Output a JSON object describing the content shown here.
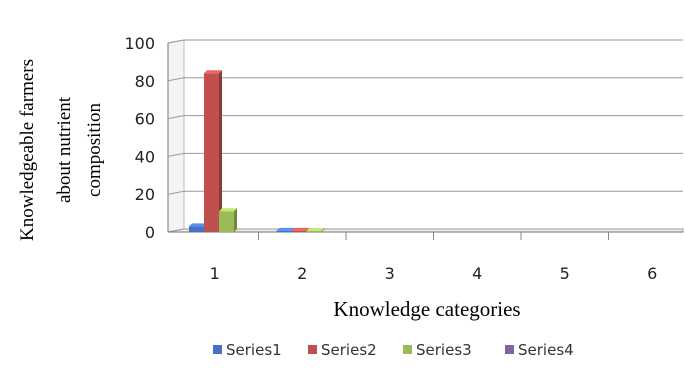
{
  "chart_data": {
    "type": "bar",
    "categories": [
      "1",
      "2",
      "3",
      "4",
      "5",
      "6"
    ],
    "series": [
      {
        "name": "Series1",
        "color": "#4472C4",
        "values": [
          3,
          0.6,
          0,
          0,
          0,
          0
        ]
      },
      {
        "name": "Series2",
        "color": "#C0504D",
        "values": [
          84,
          0.6,
          0,
          0,
          0,
          0
        ]
      },
      {
        "name": "Series3",
        "color": "#9BBB59",
        "values": [
          11,
          0.6,
          0,
          0,
          0,
          0
        ]
      },
      {
        "name": "Series4",
        "color": "#8064A2",
        "values": [
          0,
          0,
          0,
          0,
          0,
          0
        ]
      }
    ],
    "ylabel_lines": [
      "Knowledgeable farmers",
      "about  nutrient",
      "composition"
    ],
    "xlabel": "Knowledge categories",
    "ylim": [
      0,
      100
    ],
    "yticks": [
      0,
      20,
      40,
      60,
      80,
      100
    ],
    "grid": true,
    "style": "3d-clustered-column",
    "legend_position": "bottom"
  }
}
